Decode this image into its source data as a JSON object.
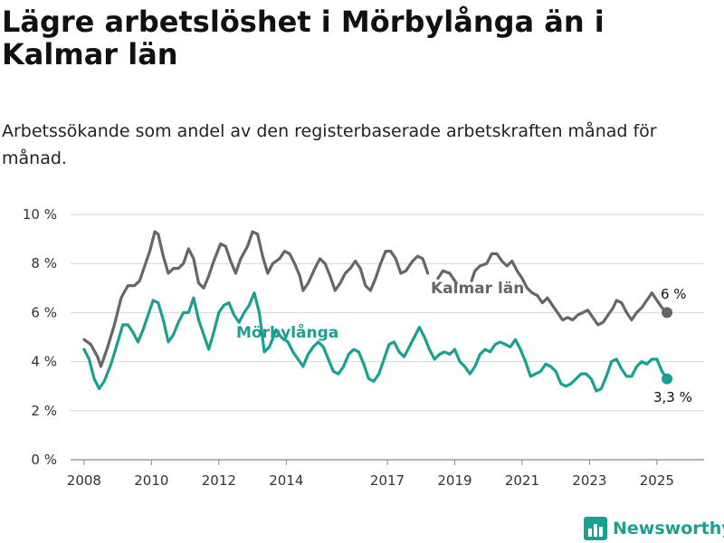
{
  "title": "Lägre arbetslöshet i Mörbylånga än i Kalmar län",
  "subtitle": "Arbetssökande som andel av den registerbaserade arbetskraften månad för månad.",
  "brand": {
    "name": "Newsworthy",
    "color": "#1a9f90",
    "icon": "bar-chart-icon"
  },
  "chart_data": {
    "type": "line",
    "title": "Lägre arbetslöshet i Mörbylånga än i Kalmar län",
    "subtitle": "Arbetssökande som andel av den registerbaserade arbetskraften månad för månad.",
    "xlabel": "",
    "ylabel": "",
    "ylim": [
      0,
      10
    ],
    "xlim": [
      2007.6,
      2026.4
    ],
    "y_ticks": [
      0,
      2,
      4,
      6,
      8,
      10
    ],
    "y_tick_labels": [
      "0 %",
      "2 %",
      "4 %",
      "6 %",
      "8 %",
      "10 %"
    ],
    "x_ticks": [
      2008,
      2010,
      2012,
      2014,
      2017,
      2019,
      2021,
      2023,
      2025
    ],
    "x_tick_labels": [
      "2008",
      "2010",
      "2012",
      "2014",
      "2017",
      "2019",
      "2021",
      "2023",
      "2025"
    ],
    "grid": "horizontal",
    "series": [
      {
        "name": "Kalmar län",
        "color": "#666666",
        "end_label": "6 %",
        "end_value": 6.0,
        "points": [
          [
            2008.0,
            4.9
          ],
          [
            2008.2,
            4.7
          ],
          [
            2008.4,
            4.2
          ],
          [
            2008.5,
            3.8
          ],
          [
            2008.7,
            4.6
          ],
          [
            2008.9,
            5.5
          ],
          [
            2009.1,
            6.6
          ],
          [
            2009.3,
            7.1
          ],
          [
            2009.5,
            7.1
          ],
          [
            2009.65,
            7.3
          ],
          [
            2009.8,
            7.9
          ],
          [
            2009.95,
            8.5
          ],
          [
            2010.1,
            9.3
          ],
          [
            2010.2,
            9.2
          ],
          [
            2010.35,
            8.3
          ],
          [
            2010.5,
            7.6
          ],
          [
            2010.65,
            7.8
          ],
          [
            2010.8,
            7.8
          ],
          [
            2010.95,
            8.0
          ],
          [
            2011.1,
            8.6
          ],
          [
            2011.25,
            8.2
          ],
          [
            2011.4,
            7.2
          ],
          [
            2011.55,
            7.0
          ],
          [
            2011.7,
            7.5
          ],
          [
            2011.85,
            8.1
          ],
          [
            2012.05,
            8.8
          ],
          [
            2012.2,
            8.7
          ],
          [
            2012.35,
            8.1
          ],
          [
            2012.5,
            7.6
          ],
          [
            2012.65,
            8.2
          ],
          [
            2012.85,
            8.7
          ],
          [
            2013.0,
            9.3
          ],
          [
            2013.15,
            9.2
          ],
          [
            2013.3,
            8.3
          ],
          [
            2013.45,
            7.6
          ],
          [
            2013.6,
            8.0
          ],
          [
            2013.8,
            8.2
          ],
          [
            2013.95,
            8.5
          ],
          [
            2014.1,
            8.4
          ],
          [
            2014.25,
            8.0
          ],
          [
            2014.4,
            7.5
          ],
          [
            2014.5,
            6.9
          ],
          [
            2014.65,
            7.2
          ],
          [
            2014.85,
            7.8
          ],
          [
            2015.0,
            8.2
          ],
          [
            2015.15,
            8.0
          ],
          [
            2015.3,
            7.5
          ],
          [
            2015.45,
            6.9
          ],
          [
            2015.6,
            7.2
          ],
          [
            2015.75,
            7.6
          ],
          [
            2015.9,
            7.8
          ],
          [
            2016.05,
            8.1
          ],
          [
            2016.2,
            7.8
          ],
          [
            2016.35,
            7.1
          ],
          [
            2016.5,
            6.9
          ],
          [
            2016.65,
            7.4
          ],
          [
            2016.8,
            8.0
          ],
          [
            2016.95,
            8.5
          ],
          [
            2017.1,
            8.5
          ],
          [
            2017.25,
            8.2
          ],
          [
            2017.4,
            7.6
          ],
          [
            2017.55,
            7.7
          ],
          [
            2017.75,
            8.1
          ],
          [
            2017.9,
            8.3
          ],
          [
            2018.05,
            8.2
          ],
          [
            2018.2,
            7.6
          ],
          [
            2018.5,
            7.4
          ],
          [
            2018.65,
            7.7
          ],
          [
            2018.85,
            7.6
          ],
          [
            2019.05,
            7.2
          ],
          [
            2019.5,
            7.3
          ],
          [
            2019.6,
            7.7
          ],
          [
            2019.75,
            7.9
          ],
          [
            2019.95,
            8.0
          ],
          [
            2020.1,
            8.4
          ],
          [
            2020.25,
            8.4
          ],
          [
            2020.4,
            8.1
          ],
          [
            2020.55,
            7.9
          ],
          [
            2020.7,
            8.1
          ],
          [
            2020.85,
            7.7
          ],
          [
            2021.0,
            7.4
          ],
          [
            2021.15,
            7.0
          ],
          [
            2021.3,
            6.8
          ],
          [
            2021.45,
            6.7
          ],
          [
            2021.6,
            6.4
          ],
          [
            2021.75,
            6.6
          ],
          [
            2021.9,
            6.3
          ],
          [
            2022.05,
            6.0
          ],
          [
            2022.2,
            5.7
          ],
          [
            2022.35,
            5.8
          ],
          [
            2022.5,
            5.7
          ],
          [
            2022.65,
            5.9
          ],
          [
            2022.8,
            6.0
          ],
          [
            2022.95,
            6.1
          ],
          [
            2023.1,
            5.8
          ],
          [
            2023.25,
            5.5
          ],
          [
            2023.4,
            5.6
          ],
          [
            2023.55,
            5.9
          ],
          [
            2023.7,
            6.2
          ],
          [
            2023.8,
            6.5
          ],
          [
            2023.95,
            6.4
          ],
          [
            2024.1,
            6.0
          ],
          [
            2024.25,
            5.7
          ],
          [
            2024.4,
            6.0
          ],
          [
            2024.55,
            6.2
          ],
          [
            2024.7,
            6.5
          ],
          [
            2024.85,
            6.8
          ],
          [
            2025.0,
            6.5
          ],
          [
            2025.15,
            6.2
          ],
          [
            2025.3,
            6.0
          ]
        ]
      },
      {
        "name": "Mörbylånga",
        "color": "#1a9f90",
        "end_label": "3,3 %",
        "end_value": 3.3,
        "points": [
          [
            2008.0,
            4.5
          ],
          [
            2008.15,
            4.1
          ],
          [
            2008.3,
            3.3
          ],
          [
            2008.45,
            2.9
          ],
          [
            2008.6,
            3.2
          ],
          [
            2008.8,
            3.9
          ],
          [
            2009.0,
            4.8
          ],
          [
            2009.15,
            5.5
          ],
          [
            2009.3,
            5.5
          ],
          [
            2009.45,
            5.2
          ],
          [
            2009.6,
            4.8
          ],
          [
            2009.75,
            5.3
          ],
          [
            2009.9,
            5.9
          ],
          [
            2010.05,
            6.5
          ],
          [
            2010.2,
            6.4
          ],
          [
            2010.35,
            5.7
          ],
          [
            2010.5,
            4.8
          ],
          [
            2010.65,
            5.1
          ],
          [
            2010.8,
            5.6
          ],
          [
            2010.95,
            6.0
          ],
          [
            2011.1,
            6.0
          ],
          [
            2011.25,
            6.6
          ],
          [
            2011.4,
            5.7
          ],
          [
            2011.55,
            5.1
          ],
          [
            2011.7,
            4.5
          ],
          [
            2011.85,
            5.2
          ],
          [
            2012.0,
            6.0
          ],
          [
            2012.15,
            6.3
          ],
          [
            2012.3,
            6.4
          ],
          [
            2012.45,
            5.9
          ],
          [
            2012.6,
            5.6
          ],
          [
            2012.75,
            6.0
          ],
          [
            2012.9,
            6.3
          ],
          [
            2013.05,
            6.8
          ],
          [
            2013.2,
            6.0
          ],
          [
            2013.35,
            4.4
          ],
          [
            2013.5,
            4.6
          ],
          [
            2013.7,
            5.3
          ],
          [
            2013.85,
            5.0
          ],
          [
            2014.05,
            4.8
          ],
          [
            2014.2,
            4.4
          ],
          [
            2014.35,
            4.1
          ],
          [
            2014.5,
            3.8
          ],
          [
            2014.65,
            4.3
          ],
          [
            2014.8,
            4.6
          ],
          [
            2014.95,
            4.8
          ],
          [
            2015.1,
            4.6
          ],
          [
            2015.25,
            4.1
          ],
          [
            2015.4,
            3.6
          ],
          [
            2015.55,
            3.5
          ],
          [
            2015.7,
            3.8
          ],
          [
            2015.85,
            4.3
          ],
          [
            2016.0,
            4.5
          ],
          [
            2016.15,
            4.4
          ],
          [
            2016.3,
            3.9
          ],
          [
            2016.45,
            3.3
          ],
          [
            2016.6,
            3.2
          ],
          [
            2016.75,
            3.5
          ],
          [
            2016.9,
            4.1
          ],
          [
            2017.05,
            4.7
          ],
          [
            2017.2,
            4.8
          ],
          [
            2017.35,
            4.4
          ],
          [
            2017.5,
            4.2
          ],
          [
            2017.65,
            4.6
          ],
          [
            2017.8,
            5.0
          ],
          [
            2017.95,
            5.4
          ],
          [
            2018.1,
            5.0
          ],
          [
            2018.25,
            4.5
          ],
          [
            2018.4,
            4.1
          ],
          [
            2018.55,
            4.3
          ],
          [
            2018.7,
            4.4
          ],
          [
            2018.85,
            4.3
          ],
          [
            2019.0,
            4.5
          ],
          [
            2019.15,
            4.0
          ],
          [
            2019.3,
            3.8
          ],
          [
            2019.45,
            3.5
          ],
          [
            2019.6,
            3.8
          ],
          [
            2019.75,
            4.3
          ],
          [
            2019.9,
            4.5
          ],
          [
            2020.05,
            4.4
          ],
          [
            2020.2,
            4.7
          ],
          [
            2020.35,
            4.8
          ],
          [
            2020.5,
            4.7
          ],
          [
            2020.65,
            4.6
          ],
          [
            2020.8,
            4.9
          ],
          [
            2020.95,
            4.5
          ],
          [
            2021.1,
            4.0
          ],
          [
            2021.25,
            3.4
          ],
          [
            2021.4,
            3.5
          ],
          [
            2021.55,
            3.6
          ],
          [
            2021.7,
            3.9
          ],
          [
            2021.85,
            3.8
          ],
          [
            2022.0,
            3.6
          ],
          [
            2022.15,
            3.1
          ],
          [
            2022.3,
            3.0
          ],
          [
            2022.45,
            3.1
          ],
          [
            2022.6,
            3.3
          ],
          [
            2022.75,
            3.5
          ],
          [
            2022.9,
            3.5
          ],
          [
            2023.05,
            3.3
          ],
          [
            2023.2,
            2.8
          ],
          [
            2023.35,
            2.9
          ],
          [
            2023.5,
            3.4
          ],
          [
            2023.65,
            4.0
          ],
          [
            2023.8,
            4.1
          ],
          [
            2023.95,
            3.7
          ],
          [
            2024.1,
            3.4
          ],
          [
            2024.25,
            3.4
          ],
          [
            2024.4,
            3.8
          ],
          [
            2024.55,
            4.0
          ],
          [
            2024.7,
            3.9
          ],
          [
            2024.85,
            4.1
          ],
          [
            2025.0,
            4.1
          ],
          [
            2025.15,
            3.6
          ],
          [
            2025.3,
            3.3
          ]
        ]
      }
    ],
    "gaps_x": [
      [
        2018.33,
        2018.5
      ],
      [
        2019.05,
        2019.5
      ]
    ]
  }
}
